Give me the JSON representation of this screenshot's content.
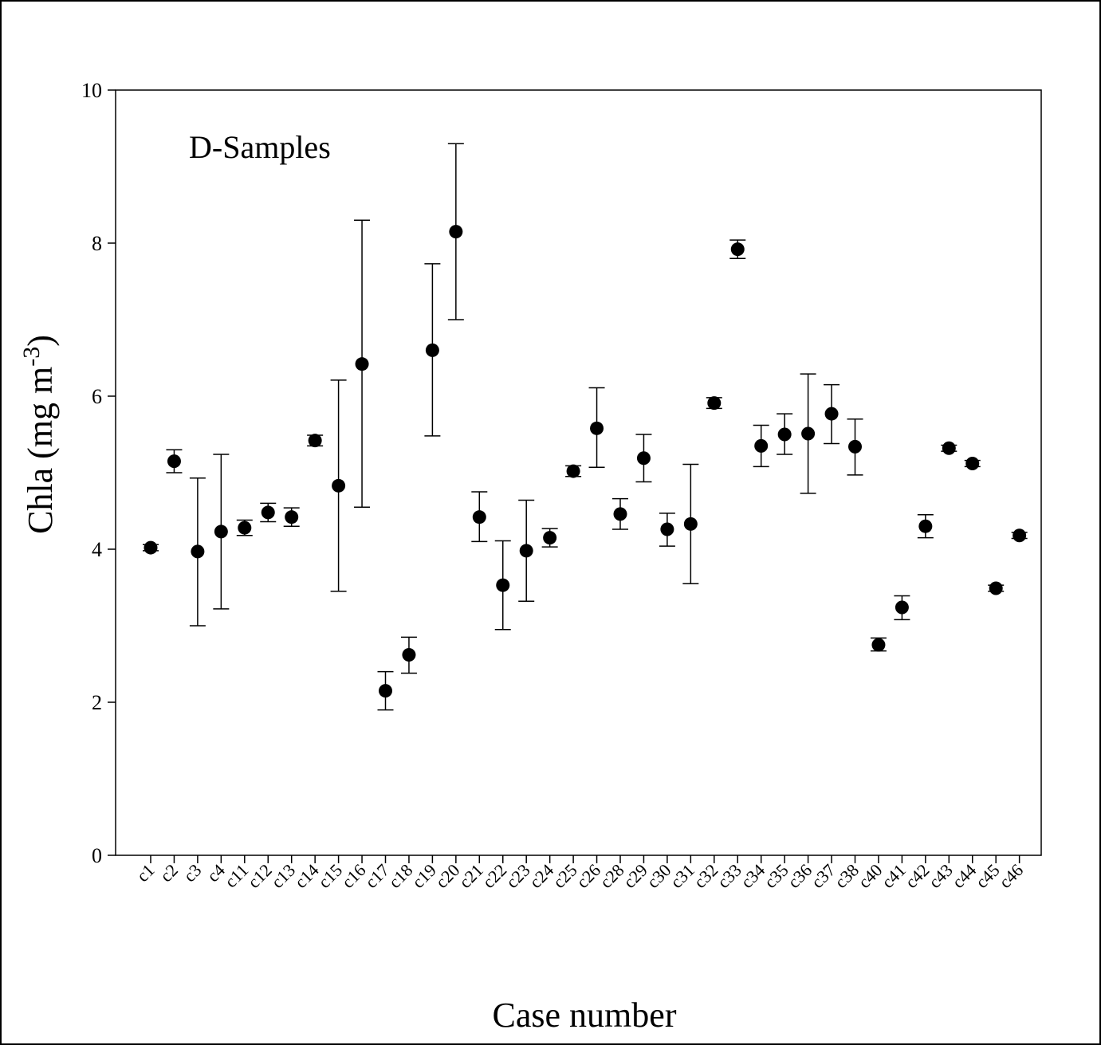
{
  "chart_data": {
    "type": "scatter",
    "annotation": "D-Samples",
    "xlabel": "Case number",
    "ylabel": "Chla (mg m-3)",
    "ylabel_parts": {
      "main": "Chla (mg m",
      "superscript": "-3",
      "close": ")"
    },
    "ylim": [
      0,
      10
    ],
    "yticks": [
      "0",
      "2",
      "4",
      "6",
      "8",
      "10"
    ],
    "grid": false,
    "legend": "none",
    "marker_color": "#000000",
    "categories": [
      "c1",
      "c2",
      "c3",
      "c4",
      "c11",
      "c12",
      "c13",
      "c14",
      "c15",
      "c16",
      "c17",
      "c18",
      "c19",
      "c20",
      "c21",
      "c22",
      "c23",
      "c24",
      "c25",
      "c26",
      "c28",
      "c29",
      "c30",
      "c31",
      "c32",
      "c33",
      "c34",
      "c35",
      "c36",
      "c37",
      "c38",
      "c40",
      "c41",
      "c42",
      "c43",
      "c44",
      "c45",
      "c46"
    ],
    "values": [
      4.02,
      5.15,
      3.97,
      4.23,
      4.28,
      4.48,
      4.42,
      5.42,
      4.83,
      6.42,
      2.15,
      2.62,
      6.6,
      8.15,
      4.42,
      3.53,
      3.98,
      4.15,
      5.02,
      5.58,
      4.46,
      5.19,
      4.26,
      4.33,
      5.91,
      7.92,
      5.35,
      5.5,
      5.51,
      5.77,
      5.34,
      2.75,
      3.24,
      4.3,
      5.32,
      5.12,
      3.49,
      4.18
    ],
    "error_low": [
      3.98,
      5.0,
      3.0,
      3.22,
      4.18,
      4.36,
      4.3,
      5.35,
      3.45,
      4.55,
      1.9,
      2.38,
      5.48,
      7.0,
      4.1,
      2.95,
      3.32,
      4.03,
      4.95,
      5.07,
      4.26,
      4.88,
      4.04,
      3.55,
      5.84,
      7.8,
      5.08,
      5.24,
      4.73,
      5.38,
      4.97,
      2.67,
      3.08,
      4.15,
      5.28,
      5.08,
      3.45,
      4.14
    ],
    "error_high": [
      4.06,
      5.3,
      4.93,
      5.24,
      4.38,
      4.6,
      4.54,
      5.49,
      6.21,
      8.3,
      2.4,
      2.85,
      7.73,
      9.3,
      4.75,
      4.11,
      4.64,
      4.27,
      5.09,
      6.11,
      4.66,
      5.5,
      4.47,
      5.11,
      5.98,
      8.04,
      5.62,
      5.77,
      6.29,
      6.15,
      5.7,
      2.84,
      3.39,
      4.45,
      5.36,
      5.16,
      3.53,
      4.22
    ]
  }
}
